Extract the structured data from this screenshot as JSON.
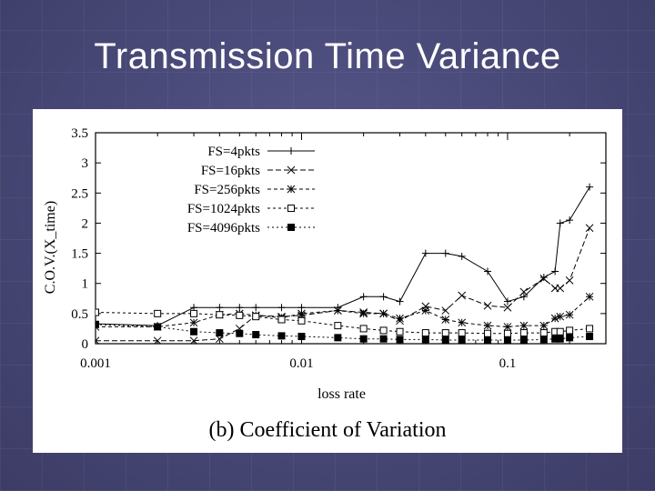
{
  "slide": {
    "title": "Transmission Time Variance"
  },
  "colors": {
    "background": "#4a4a78",
    "title": "#ffffff",
    "plot": "#000000"
  },
  "chart_data": {
    "type": "line",
    "xlabel": "loss rate",
    "ylabel": "C.O.V.(X_time)",
    "caption": "(b) Coefficient of Variation",
    "x_scale": "log",
    "xlim": [
      0.001,
      0.3
    ],
    "ylim": [
      0,
      3.5
    ],
    "x_ticks": [
      0.001,
      0.01,
      0.1
    ],
    "x_tick_labels": [
      "0.001",
      "0.01",
      "0.1"
    ],
    "y_ticks": [
      0,
      0.5,
      1,
      1.5,
      2,
      2.5,
      3,
      3.5
    ],
    "y_tick_labels": [
      "0",
      "0.5",
      "1",
      "1.5",
      "2",
      "2.5",
      "3",
      "3.5"
    ],
    "grid": false,
    "legend_position": "top-right",
    "series": [
      {
        "name": "FS=4pkts",
        "marker": "plus",
        "dash": "",
        "x": [
          0.001,
          0.002,
          0.003,
          0.004,
          0.005,
          0.006,
          0.008,
          0.01,
          0.015,
          0.02,
          0.025,
          0.03,
          0.04,
          0.05,
          0.06,
          0.08,
          0.1,
          0.12,
          0.15,
          0.17,
          0.18,
          0.2,
          0.25
        ],
        "y": [
          0.33,
          0.3,
          0.6,
          0.6,
          0.6,
          0.6,
          0.6,
          0.6,
          0.6,
          0.78,
          0.78,
          0.7,
          1.5,
          1.5,
          1.45,
          1.2,
          0.7,
          0.78,
          1.1,
          1.2,
          2.0,
          2.05,
          2.6
        ]
      },
      {
        "name": "FS=16pkts",
        "marker": "cross",
        "dash": "6,3",
        "x": [
          0.001,
          0.002,
          0.003,
          0.004,
          0.005,
          0.006,
          0.008,
          0.01,
          0.015,
          0.02,
          0.025,
          0.03,
          0.04,
          0.05,
          0.06,
          0.08,
          0.1,
          0.12,
          0.15,
          0.17,
          0.18,
          0.2,
          0.25
        ],
        "y": [
          0.05,
          0.05,
          0.05,
          0.08,
          0.25,
          0.47,
          0.45,
          0.47,
          0.55,
          0.52,
          0.5,
          0.38,
          0.62,
          0.55,
          0.8,
          0.63,
          0.6,
          0.86,
          1.08,
          0.92,
          0.92,
          1.05,
          1.92
        ]
      },
      {
        "name": "FS=256pkts",
        "marker": "asterisk",
        "dash": "4,3",
        "x": [
          0.001,
          0.002,
          0.003,
          0.004,
          0.005,
          0.006,
          0.008,
          0.01,
          0.015,
          0.02,
          0.025,
          0.03,
          0.04,
          0.05,
          0.06,
          0.08,
          0.1,
          0.12,
          0.15,
          0.17,
          0.18,
          0.2,
          0.25
        ],
        "y": [
          0.28,
          0.28,
          0.35,
          0.48,
          0.5,
          0.47,
          0.43,
          0.5,
          0.55,
          0.5,
          0.5,
          0.42,
          0.55,
          0.4,
          0.35,
          0.3,
          0.28,
          0.3,
          0.3,
          0.42,
          0.45,
          0.48,
          0.78
        ]
      },
      {
        "name": "FS=1024pkts",
        "marker": "square-open",
        "dash": "3,3",
        "x": [
          0.001,
          0.002,
          0.003,
          0.004,
          0.005,
          0.006,
          0.008,
          0.01,
          0.015,
          0.02,
          0.025,
          0.03,
          0.04,
          0.05,
          0.06,
          0.08,
          0.1,
          0.12,
          0.15,
          0.17,
          0.18,
          0.2,
          0.25
        ],
        "y": [
          0.52,
          0.5,
          0.5,
          0.48,
          0.47,
          0.45,
          0.4,
          0.38,
          0.3,
          0.25,
          0.22,
          0.2,
          0.18,
          0.18,
          0.18,
          0.17,
          0.17,
          0.18,
          0.18,
          0.2,
          0.2,
          0.22,
          0.25
        ]
      },
      {
        "name": "FS=4096pkts",
        "marker": "square-filled",
        "dash": "2,3",
        "x": [
          0.001,
          0.002,
          0.003,
          0.004,
          0.005,
          0.006,
          0.008,
          0.01,
          0.015,
          0.02,
          0.025,
          0.03,
          0.04,
          0.05,
          0.06,
          0.08,
          0.1,
          0.12,
          0.15,
          0.17,
          0.18,
          0.2,
          0.25
        ],
        "y": [
          0.32,
          0.28,
          0.2,
          0.18,
          0.17,
          0.15,
          0.13,
          0.12,
          0.1,
          0.08,
          0.08,
          0.07,
          0.07,
          0.06,
          0.06,
          0.06,
          0.06,
          0.06,
          0.07,
          0.08,
          0.08,
          0.1,
          0.12
        ]
      }
    ]
  }
}
